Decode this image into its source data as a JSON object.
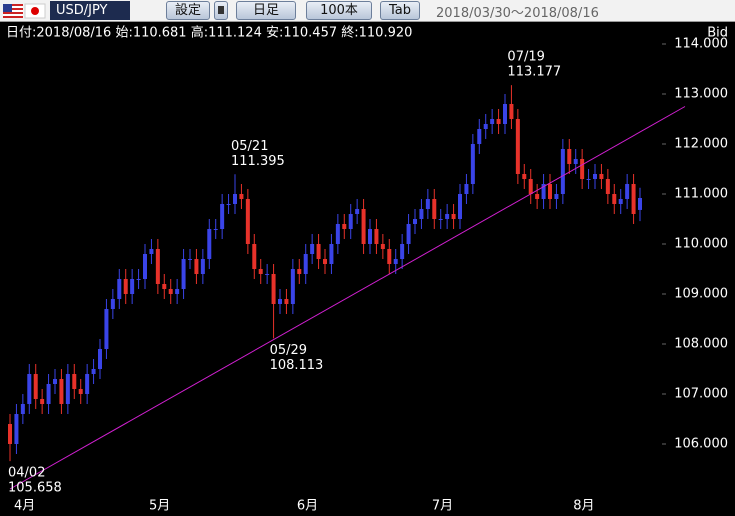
{
  "toolbar": {
    "pair": "USD/JPY",
    "buttons": [
      "設定",
      "日足",
      "100本",
      "Tab"
    ],
    "range": "2018/03/30～2018/08/16"
  },
  "chart_data": {
    "type": "candlestick",
    "info": "日付:2018/08/16 始:110.681 高:111.124 安:110.457 終:110.920",
    "axis_label": "Bid",
    "categories": [
      "4月",
      null,
      null,
      null,
      null,
      null,
      null,
      null,
      null,
      null,
      null,
      null,
      null,
      null,
      null,
      null,
      null,
      null,
      null,
      null,
      null,
      "5月",
      null,
      null,
      null,
      null,
      null,
      null,
      null,
      null,
      null,
      null,
      null,
      null,
      null,
      null,
      null,
      null,
      null,
      null,
      null,
      null,
      null,
      null,
      "6月",
      null,
      null,
      null,
      null,
      null,
      null,
      null,
      null,
      null,
      null,
      null,
      null,
      null,
      null,
      null,
      null,
      null,
      null,
      null,
      null,
      "7月",
      null,
      null,
      null,
      null,
      null,
      null,
      null,
      null,
      null,
      null,
      null,
      null,
      null,
      null,
      null,
      null,
      null,
      null,
      null,
      null,
      null,
      "8月",
      null,
      null,
      null,
      null,
      null,
      null,
      null,
      null,
      null,
      null,
      null
    ],
    "open": [
      106.4,
      106.0,
      106.6,
      106.8,
      107.4,
      106.9,
      106.8,
      107.2,
      107.3,
      106.8,
      107.4,
      107.1,
      107.0,
      107.4,
      107.5,
      107.9,
      108.7,
      108.9,
      109.3,
      109.0,
      109.3,
      109.3,
      109.8,
      109.9,
      109.2,
      109.1,
      109.0,
      109.1,
      109.7,
      109.7,
      109.4,
      109.7,
      110.3,
      110.3,
      110.8,
      110.8,
      111.0,
      110.9,
      110.0,
      109.5,
      109.4,
      109.4,
      108.8,
      108.9,
      108.8,
      109.5,
      109.4,
      109.8,
      110.0,
      109.7,
      109.6,
      110.0,
      110.4,
      110.3,
      110.6,
      110.7,
      110.0,
      110.3,
      110.0,
      109.9,
      109.6,
      109.7,
      110.0,
      110.4,
      110.5,
      110.7,
      110.9,
      110.5,
      110.5,
      110.6,
      110.5,
      111.0,
      111.2,
      112.0,
      112.3,
      112.4,
      112.5,
      112.4,
      112.8,
      112.5,
      111.4,
      111.3,
      111.0,
      110.9,
      111.2,
      110.9,
      111.0,
      111.9,
      111.6,
      111.7,
      111.3,
      111.3,
      111.4,
      111.3,
      111.0,
      110.8,
      110.9,
      111.2,
      110.681
    ],
    "high": [
      106.6,
      106.8,
      107.0,
      107.6,
      107.6,
      107.1,
      107.4,
      107.5,
      107.5,
      107.6,
      107.6,
      107.3,
      107.6,
      107.7,
      108.1,
      108.9,
      109.1,
      109.5,
      109.5,
      109.5,
      109.5,
      110.0,
      110.1,
      110.1,
      109.4,
      109.3,
      109.3,
      109.9,
      109.9,
      109.9,
      109.9,
      110.5,
      110.5,
      111.0,
      111.0,
      111.395,
      111.2,
      111.1,
      110.2,
      109.7,
      109.6,
      109.6,
      109.1,
      109.1,
      109.7,
      109.7,
      110.0,
      110.2,
      110.2,
      109.9,
      110.2,
      110.6,
      110.6,
      110.8,
      110.9,
      110.9,
      110.5,
      110.5,
      110.2,
      110.1,
      109.9,
      110.2,
      110.6,
      110.7,
      110.9,
      111.1,
      111.1,
      110.7,
      110.8,
      110.8,
      111.2,
      111.4,
      112.2,
      112.5,
      112.6,
      112.7,
      112.7,
      113.0,
      113.177,
      112.7,
      111.6,
      111.5,
      111.2,
      111.4,
      111.4,
      111.2,
      112.1,
      112.1,
      111.9,
      111.9,
      111.5,
      111.6,
      111.6,
      111.5,
      111.2,
      111.1,
      111.4,
      111.4,
      111.124
    ],
    "low": [
      105.658,
      105.8,
      106.4,
      106.6,
      106.7,
      106.6,
      106.6,
      107.0,
      106.6,
      106.6,
      106.9,
      106.8,
      106.8,
      107.2,
      107.3,
      107.7,
      108.5,
      108.7,
      108.8,
      108.8,
      109.1,
      109.1,
      109.6,
      109.0,
      108.9,
      108.8,
      108.8,
      108.9,
      109.5,
      109.2,
      109.2,
      109.5,
      110.1,
      110.1,
      110.6,
      110.6,
      110.7,
      109.8,
      109.3,
      109.2,
      109.2,
      108.113,
      108.6,
      108.6,
      108.6,
      109.2,
      109.2,
      109.6,
      109.5,
      109.4,
      109.4,
      109.8,
      110.1,
      110.1,
      110.4,
      109.8,
      109.8,
      109.8,
      109.7,
      109.4,
      109.4,
      109.5,
      109.8,
      110.2,
      110.3,
      110.5,
      110.3,
      110.3,
      110.3,
      110.3,
      110.3,
      110.8,
      111.0,
      111.8,
      112.1,
      112.2,
      112.2,
      112.2,
      112.3,
      111.2,
      111.1,
      110.8,
      110.7,
      110.7,
      110.7,
      110.7,
      110.8,
      111.4,
      111.4,
      111.1,
      111.1,
      111.1,
      111.1,
      110.8,
      110.6,
      110.6,
      110.7,
      110.4,
      110.457
    ],
    "close": [
      106.0,
      106.6,
      106.8,
      107.4,
      106.9,
      106.8,
      107.2,
      107.3,
      106.8,
      107.4,
      107.1,
      107.0,
      107.4,
      107.5,
      107.9,
      108.7,
      108.9,
      109.3,
      109.0,
      109.3,
      109.3,
      109.8,
      109.9,
      109.2,
      109.1,
      109.0,
      109.1,
      109.7,
      109.7,
      109.4,
      109.7,
      110.3,
      110.3,
      110.8,
      110.8,
      111.0,
      110.9,
      110.0,
      109.5,
      109.4,
      109.4,
      108.8,
      108.9,
      108.8,
      109.5,
      109.4,
      109.8,
      110.0,
      109.7,
      109.6,
      110.0,
      110.4,
      110.3,
      110.6,
      110.7,
      110.0,
      110.3,
      110.0,
      109.9,
      109.6,
      109.7,
      110.0,
      110.4,
      110.5,
      110.7,
      110.9,
      110.5,
      110.5,
      110.6,
      110.5,
      111.0,
      111.2,
      112.0,
      112.3,
      112.4,
      112.5,
      112.4,
      112.8,
      112.5,
      111.4,
      111.3,
      111.0,
      110.9,
      111.2,
      110.9,
      111.0,
      111.9,
      111.6,
      111.7,
      111.3,
      111.3,
      111.4,
      111.3,
      111.0,
      110.8,
      110.9,
      111.2,
      110.6,
      110.92
    ],
    "up_color": "#3a44e8",
    "down_color": "#e8322a",
    "annotations": [
      {
        "date": "04/02",
        "value": 105.658
      },
      {
        "date": "05/21",
        "value": 111.395
      },
      {
        "date": "05/29",
        "value": 108.113
      },
      {
        "date": "07/19",
        "value": 113.177
      }
    ],
    "trendline": {
      "x": [
        0,
        105
      ],
      "y": [
        105.1,
        112.75
      ],
      "color": "#d020d0"
    },
    "ylim": [
      104.96,
      114.44
    ],
    "yticks": [
      {
        "value": 106,
        "label": "106.000"
      },
      {
        "value": 107,
        "label": "107.000"
      },
      {
        "value": 108,
        "label": "108.000"
      },
      {
        "value": 109,
        "label": "109.000"
      },
      {
        "value": 110,
        "label": "110.000"
      },
      {
        "value": 111,
        "label": "111.000"
      },
      {
        "value": 112,
        "label": "112.000"
      },
      {
        "value": 113,
        "label": "113.000"
      },
      {
        "value": 114,
        "label": "114.000"
      }
    ]
  }
}
